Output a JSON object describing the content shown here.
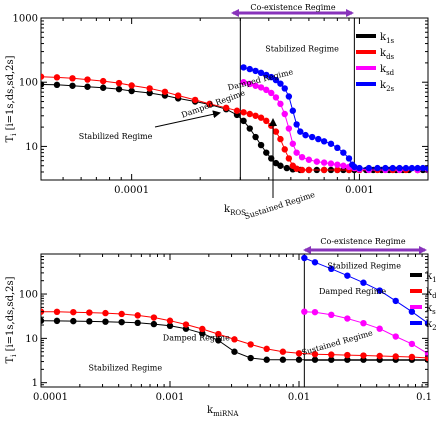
{
  "chart_data": [
    {
      "type": "scatter",
      "xscale": "log",
      "yscale": "log",
      "xlim": [
        4e-05,
        0.002
      ],
      "ylim": [
        3,
        1000
      ],
      "ylabel_main": "T",
      "ylabel_sub": "i",
      "ylabel_rest": " [i=1s,ds,sd,2s]",
      "xlabel_main": "k",
      "xlabel_sub": "ROS",
      "x_tick_labels": [
        {
          "x": 0.0001,
          "label": "0.0001"
        },
        {
          "x": 0.001,
          "label": "0.001"
        }
      ],
      "y_tick_labels": [
        {
          "y": 10,
          "label": "10"
        },
        {
          "y": 100,
          "label": "100"
        },
        {
          "y": 1000,
          "label": "1000"
        }
      ],
      "legend": {
        "placement": "top-right",
        "entries": [
          {
            "main": "k",
            "sub": "1s",
            "color": "#000000"
          },
          {
            "main": "k",
            "sub": "ds",
            "color": "#ff0000"
          },
          {
            "main": "k",
            "sub": "sd",
            "color": "#ff00ff"
          },
          {
            "main": "k",
            "sub": "2s",
            "color": "#0000ff"
          }
        ]
      },
      "boundaries": [
        0.0003,
        0.00095
      ],
      "arrow_label": "Co-existence Regime",
      "annotations": [
        {
          "text": "Stabilized Regime",
          "x": 8.5e-05,
          "y": 13
        },
        {
          "text": "Stabilized Regime",
          "x": 0.00056,
          "y": 300
        },
        {
          "text": "Damped Regime",
          "x": 0.00037,
          "y": 100
        },
        {
          "text": "Damped Regime",
          "x": 0.00023,
          "y": 42
        },
        {
          "text": "Sustained Regime",
          "x": 0.00045,
          "y": 1.1
        }
      ],
      "series": [
        {
          "color": "#000000",
          "points": [
            [
              4e-05,
              92
            ],
            [
              4.7e-05,
              91
            ],
            [
              5.5e-05,
              88
            ],
            [
              6.4e-05,
              85
            ],
            [
              7.5e-05,
              82
            ],
            [
              8.8e-05,
              78
            ],
            [
              0.0001,
              73
            ],
            [
              0.00012,
              68
            ],
            [
              0.00014,
              62
            ],
            [
              0.00016,
              56
            ],
            [
              0.00019,
              50
            ],
            [
              0.00022,
              45
            ],
            [
              0.00026,
              38
            ],
            [
              0.00029,
              31
            ],
            [
              0.00031,
              25
            ],
            [
              0.00033,
              19
            ],
            [
              0.00035,
              14
            ],
            [
              0.00037,
              10.5
            ],
            [
              0.00039,
              8
            ],
            [
              0.00041,
              6.5
            ],
            [
              0.00043,
              5.5
            ],
            [
              0.00045,
              5
            ],
            [
              0.00048,
              4.6
            ],
            [
              0.00051,
              4.4
            ],
            [
              0.00055,
              4.3
            ],
            [
              0.0006,
              4.3
            ],
            [
              0.00065,
              4.3
            ],
            [
              0.0007,
              4.3
            ],
            [
              0.00075,
              4.3
            ],
            [
              0.0008,
              4.3
            ],
            [
              0.00085,
              4.3
            ],
            [
              0.0009,
              4.3
            ],
            [
              0.00095,
              4.3
            ],
            [
              0.001,
              4.3
            ],
            [
              0.00107,
              4.3
            ],
            [
              0.00115,
              4.3
            ],
            [
              0.00125,
              4.3
            ],
            [
              0.00135,
              4.3
            ],
            [
              0.00145,
              4.3
            ],
            [
              0.00155,
              4.3
            ],
            [
              0.00165,
              4.3
            ],
            [
              0.0018,
              4.3
            ],
            [
              0.0019,
              4.3
            ],
            [
              0.002,
              4.3
            ]
          ]
        },
        {
          "color": "#ff0000",
          "points": [
            [
              4e-05,
              122
            ],
            [
              4.7e-05,
              119
            ],
            [
              5.5e-05,
              115
            ],
            [
              6.4e-05,
              110
            ],
            [
              7.5e-05,
              104
            ],
            [
              8.8e-05,
              97
            ],
            [
              0.0001,
              89
            ],
            [
              0.00012,
              80
            ],
            [
              0.00014,
              71
            ],
            [
              0.00016,
              62
            ],
            [
              0.00019,
              53
            ],
            [
              0.00022,
              46
            ],
            [
              0.00026,
              40
            ],
            [
              0.00029,
              36
            ],
            [
              0.00031,
              34
            ],
            [
              0.00033,
              32
            ],
            [
              0.00035,
              30
            ],
            [
              0.00037,
              28
            ],
            [
              0.00039,
              25
            ],
            [
              0.00041,
              21
            ],
            [
              0.00043,
              17
            ],
            [
              0.00045,
              13
            ],
            [
              0.00047,
              9
            ],
            [
              0.00049,
              6.5
            ],
            [
              0.00051,
              5
            ],
            [
              0.00053,
              4.5
            ],
            [
              0.00056,
              4.3
            ],
            [
              0.0006,
              4.3
            ],
            [
              0.0007,
              4.3
            ],
            [
              0.0008,
              4.3
            ],
            [
              0.0009,
              4.3
            ],
            [
              0.001,
              4.3
            ],
            [
              0.0012,
              4.3
            ],
            [
              0.0014,
              4.3
            ],
            [
              0.0016,
              4.3
            ],
            [
              0.0018,
              4.3
            ],
            [
              0.002,
              4.3
            ]
          ]
        },
        {
          "color": "#ff00ff",
          "points": [
            [
              0.00031,
              100
            ],
            [
              0.00033,
              94
            ],
            [
              0.00035,
              88
            ],
            [
              0.00037,
              83
            ],
            [
              0.00039,
              76
            ],
            [
              0.00041,
              68
            ],
            [
              0.00043,
              58
            ],
            [
              0.00045,
              46
            ],
            [
              0.00047,
              32
            ],
            [
              0.00049,
              19
            ],
            [
              0.00051,
              11
            ],
            [
              0.00053,
              8
            ],
            [
              0.00056,
              6.8
            ],
            [
              0.0006,
              6.2
            ],
            [
              0.00065,
              5.8
            ],
            [
              0.0007,
              5.6
            ],
            [
              0.00075,
              5.4
            ],
            [
              0.0008,
              5.2
            ],
            [
              0.00085,
              5
            ],
            [
              0.0009,
              4.8
            ],
            [
              0.00095,
              4.6
            ],
            [
              0.001,
              4.4
            ],
            [
              0.0011,
              4.3
            ],
            [
              0.0013,
              4.3
            ],
            [
              0.0015,
              4.3
            ],
            [
              0.0018,
              4.3
            ],
            [
              0.002,
              4.3
            ]
          ]
        },
        {
          "color": "#0000ff",
          "points": [
            [
              0.00031,
              170
            ],
            [
              0.00033,
              160
            ],
            [
              0.00035,
              150
            ],
            [
              0.00037,
              140
            ],
            [
              0.00039,
              130
            ],
            [
              0.00041,
              120
            ],
            [
              0.00043,
              108
            ],
            [
              0.00045,
              95
            ],
            [
              0.00047,
              80
            ],
            [
              0.00049,
              60
            ],
            [
              0.00051,
              36
            ],
            [
              0.00053,
              22
            ],
            [
              0.00055,
              17
            ],
            [
              0.00058,
              15
            ],
            [
              0.00062,
              14
            ],
            [
              0.00066,
              13
            ],
            [
              0.0007,
              12
            ],
            [
              0.00075,
              11
            ],
            [
              0.0008,
              9.5
            ],
            [
              0.00085,
              8
            ],
            [
              0.0009,
              6.5
            ],
            [
              0.00093,
              5.2
            ],
            [
              0.00095,
              4.8
            ],
            [
              0.001,
              4.6
            ],
            [
              0.0011,
              4.6
            ],
            [
              0.0012,
              4.6
            ],
            [
              0.0013,
              4.6
            ],
            [
              0.0014,
              4.6
            ],
            [
              0.0015,
              4.6
            ],
            [
              0.0016,
              4.6
            ],
            [
              0.0017,
              4.6
            ],
            [
              0.0018,
              4.6
            ],
            [
              0.0019,
              4.6
            ],
            [
              0.002,
              4.6
            ]
          ]
        }
      ]
    },
    {
      "type": "scatter",
      "xscale": "log",
      "yscale": "log",
      "xlim": [
        0.0001,
        0.1
      ],
      "ylim": [
        0.8,
        800
      ],
      "ylabel_main": "T",
      "ylabel_sub": "i",
      "ylabel_rest": " [i=1s,ds,sd,2s]",
      "xlabel_main": "k",
      "xlabel_sub": "miRNA",
      "x_tick_labels": [
        {
          "x": 0.0001,
          "label": "0.0001"
        },
        {
          "x": 0.001,
          "label": "0.001"
        },
        {
          "x": 0.01,
          "label": "0.01"
        },
        {
          "x": 0.1,
          "label": "0.1"
        }
      ],
      "y_tick_labels": [
        {
          "y": 1,
          "label": "1"
        },
        {
          "y": 10,
          "label": "10"
        },
        {
          "y": 100,
          "label": "100"
        }
      ],
      "legend": {
        "placement": "top-right",
        "entries": [
          {
            "main": "k",
            "sub": "1s",
            "color": "#000000"
          },
          {
            "main": "k",
            "sub": "ds",
            "color": "#ff0000"
          },
          {
            "main": "k",
            "sub": "sd",
            "color": "#ff00ff"
          },
          {
            "main": "k",
            "sub": "2s",
            "color": "#0000ff"
          }
        ]
      },
      "boundaries": [
        0.011
      ],
      "arrow_label": "Co-existence Regime",
      "annotations": [
        {
          "text": "Stabilized Regime",
          "x": 0.00045,
          "y": 1.9
        },
        {
          "text": "Stabilized Regime",
          "x": 0.032,
          "y": 380
        },
        {
          "text": "Damped Regime",
          "x": 0.0016,
          "y": 9
        },
        {
          "text": "Damped Regime",
          "x": 0.026,
          "y": 100
        },
        {
          "text": "Sustained Regime",
          "x": 0.02,
          "y": 7
        }
      ],
      "series": [
        {
          "color": "#000000",
          "points": [
            [
              0.0001,
              25
            ],
            [
              0.000133,
              24.8
            ],
            [
              0.000178,
              24.5
            ],
            [
              0.000237,
              24.2
            ],
            [
              0.000316,
              23.8
            ],
            [
              0.000422,
              23.2
            ],
            [
              0.000562,
              22.4
            ],
            [
              0.00075,
              21
            ],
            [
              0.001,
              19.2
            ],
            [
              0.00133,
              16.5
            ],
            [
              0.00178,
              13
            ],
            [
              0.00237,
              9
            ],
            [
              0.00316,
              5
            ],
            [
              0.00422,
              3.6
            ],
            [
              0.00562,
              3.3
            ],
            [
              0.0075,
              3.3
            ],
            [
              0.01,
              3.3
            ],
            [
              0.0133,
              3.3
            ],
            [
              0.0178,
              3.3
            ],
            [
              0.0237,
              3.3
            ],
            [
              0.0316,
              3.3
            ],
            [
              0.0422,
              3.3
            ],
            [
              0.0562,
              3.3
            ],
            [
              0.075,
              3.3
            ],
            [
              0.1,
              3.3
            ]
          ]
        },
        {
          "color": "#ff0000",
          "points": [
            [
              0.0001,
              40
            ],
            [
              0.000133,
              39.7
            ],
            [
              0.000178,
              39
            ],
            [
              0.000237,
              38.2
            ],
            [
              0.000316,
              37.2
            ],
            [
              0.000422,
              35.5
            ],
            [
              0.000562,
              33
            ],
            [
              0.00075,
              29.5
            ],
            [
              0.001,
              25
            ],
            [
              0.00133,
              20.5
            ],
            [
              0.00178,
              16.3
            ],
            [
              0.00237,
              12.5
            ],
            [
              0.00316,
              9.5
            ],
            [
              0.00422,
              7.3
            ],
            [
              0.00562,
              5.8
            ],
            [
              0.0075,
              5
            ],
            [
              0.01,
              4.6
            ],
            [
              0.0133,
              4.4
            ],
            [
              0.0178,
              4.3
            ],
            [
              0.0237,
              4.2
            ],
            [
              0.0316,
              4.1
            ],
            [
              0.0422,
              4
            ],
            [
              0.0562,
              3.9
            ],
            [
              0.075,
              3.8
            ],
            [
              0.1,
              3.6
            ]
          ]
        },
        {
          "color": "#ff00ff",
          "points": [
            [
              0.011,
              40
            ],
            [
              0.0133,
              39
            ],
            [
              0.0178,
              34
            ],
            [
              0.0237,
              28
            ],
            [
              0.0316,
              22
            ],
            [
              0.0422,
              16.5
            ],
            [
              0.0562,
              11
            ],
            [
              0.075,
              7.5
            ],
            [
              0.1,
              4.5
            ]
          ]
        },
        {
          "color": "#0000ff",
          "points": [
            [
              0.011,
              650
            ],
            [
              0.0133,
              520
            ],
            [
              0.0178,
              370
            ],
            [
              0.0237,
              260
            ],
            [
              0.0316,
              180
            ],
            [
              0.0422,
              120
            ],
            [
              0.0562,
              70
            ],
            [
              0.075,
              40
            ],
            [
              0.1,
              22
            ]
          ]
        }
      ]
    }
  ]
}
